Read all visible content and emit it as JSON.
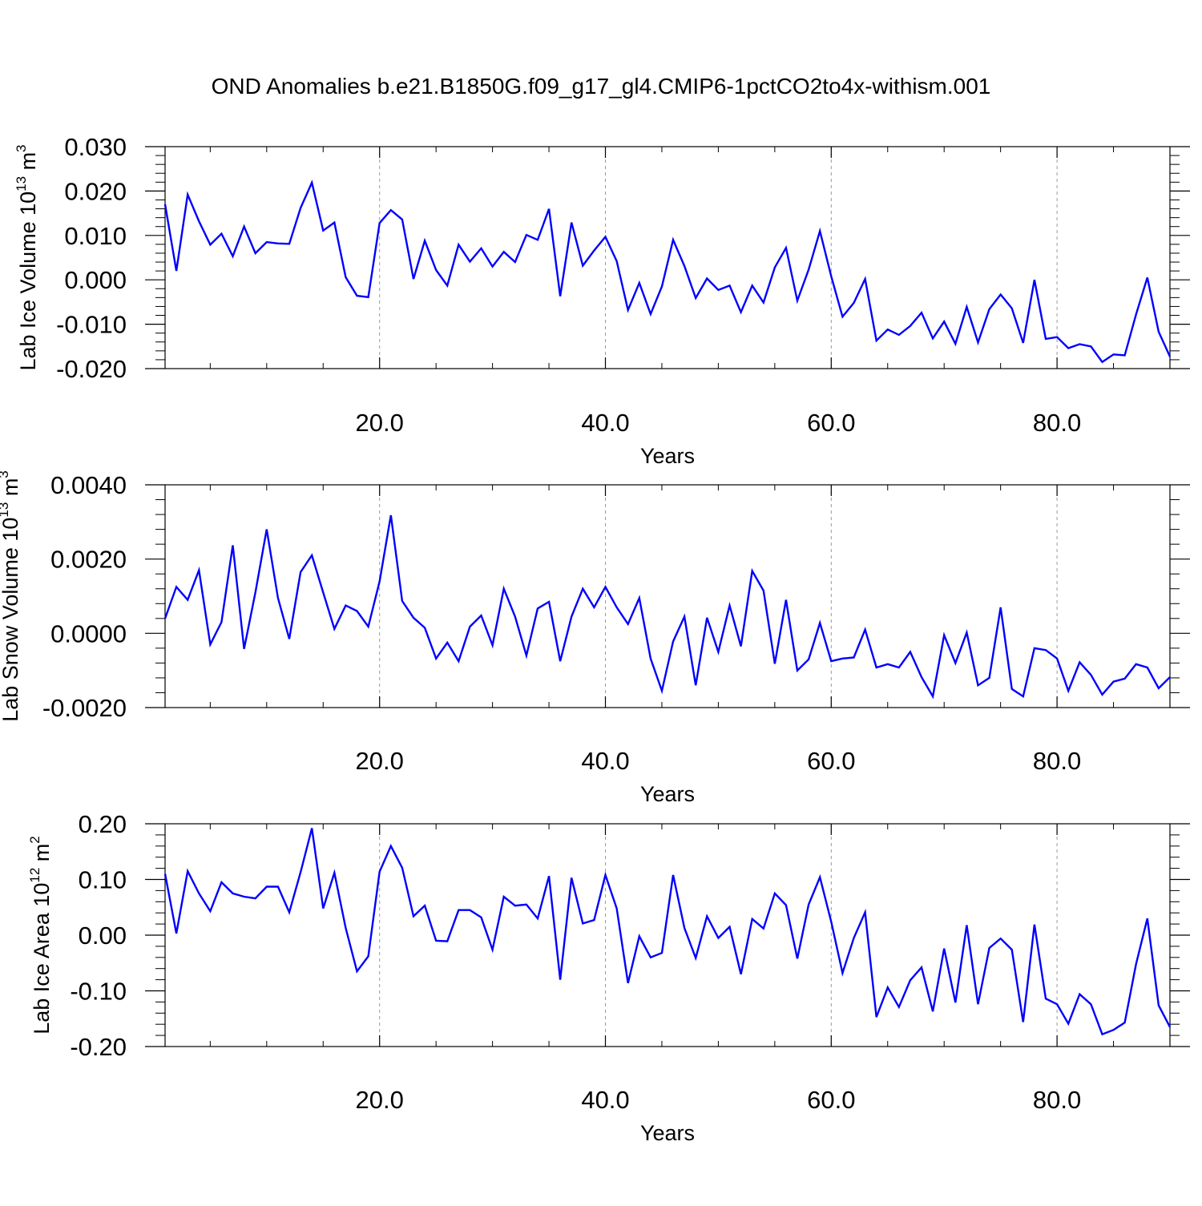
{
  "title": "OND Anomalies b.e21.B1850G.f09_g17_gl4.CMIP6-1pctCO2to4x-withism.001",
  "colors": {
    "line": "#0000ff",
    "axis": "#000000",
    "grid": "#999999",
    "background": "#ffffff"
  },
  "chart_data": [
    {
      "type": "line",
      "xlabel": "Years",
      "ylabel": {
        "text": "Lab Ice Volume 10",
        "exponent": "13",
        "unit": " m",
        "unit_exponent": "3"
      },
      "xlim": [
        1,
        90
      ],
      "ylim": [
        -0.02,
        0.03
      ],
      "xticks": [
        20,
        40,
        60,
        80
      ],
      "xtick_labels": [
        "20.0",
        "40.0",
        "60.0",
        "80.0"
      ],
      "yticks": [
        -0.02,
        -0.01,
        0.0,
        0.01,
        0.02,
        0.03
      ],
      "ytick_labels": [
        "-0.020",
        "-0.010",
        "0.000",
        "0.010",
        "0.020",
        "0.030"
      ],
      "grid": "vertical dashed at major x ticks",
      "series": [
        {
          "color": "#0000ff",
          "x": [
            1,
            2,
            3,
            4,
            5,
            6,
            7,
            8,
            9,
            10,
            11,
            12,
            13,
            14,
            15,
            16,
            17,
            18,
            19,
            20,
            21,
            22,
            23,
            24,
            25,
            26,
            27,
            28,
            29,
            30,
            31,
            32,
            33,
            34,
            35,
            36,
            37,
            38,
            39,
            40,
            41,
            42,
            43,
            44,
            45,
            46,
            47,
            48,
            49,
            50,
            51,
            52,
            53,
            54,
            55,
            56,
            57,
            58,
            59,
            60,
            61,
            62,
            63,
            64,
            65,
            66,
            67,
            68,
            69,
            70,
            71,
            72,
            73,
            74,
            75,
            76,
            77,
            78,
            79,
            80,
            81,
            82,
            83,
            84,
            85,
            86,
            87,
            88,
            89,
            90
          ],
          "values": [
            0.017,
            0.002,
            0.0192,
            0.0132,
            0.0079,
            0.0104,
            0.0053,
            0.012,
            0.006,
            0.0085,
            0.0082,
            0.0081,
            0.0162,
            0.0219,
            0.0111,
            0.0129,
            0.0006,
            -0.0036,
            -0.0039,
            0.0128,
            0.0157,
            0.0136,
            0.0002,
            0.0088,
            0.0022,
            -0.0013,
            0.0079,
            0.0041,
            0.0071,
            0.003,
            0.0063,
            0.004,
            0.0101,
            0.009,
            0.016,
            -0.0037,
            0.0129,
            0.0032,
            0.0066,
            0.0097,
            0.0042,
            -0.0068,
            -0.0007,
            -0.0077,
            -0.0015,
            0.009,
            0.0031,
            -0.0041,
            0.0003,
            -0.0023,
            -0.0013,
            -0.0073,
            -0.0013,
            -0.0051,
            0.0028,
            0.0072,
            -0.0047,
            0.0023,
            0.011,
            0.0008,
            -0.0083,
            -0.0052,
            0.0002,
            -0.0137,
            -0.0112,
            -0.0124,
            -0.0104,
            -0.0074,
            -0.0132,
            -0.0094,
            -0.0144,
            -0.0061,
            -0.0141,
            -0.0066,
            -0.0033,
            -0.0064,
            -0.0142,
            0.0,
            -0.0133,
            -0.0129,
            -0.0154,
            -0.0145,
            -0.015,
            -0.0185,
            -0.0168,
            -0.017,
            -0.0078,
            0.0005,
            -0.0117,
            -0.0173
          ]
        }
      ]
    },
    {
      "type": "line",
      "xlabel": "Years",
      "ylabel": {
        "text": "Lab Snow Volume 10",
        "exponent": "13",
        "unit": " m",
        "unit_exponent": "3"
      },
      "xlim": [
        1,
        90
      ],
      "ylim": [
        -0.002,
        0.004
      ],
      "xticks": [
        20,
        40,
        60,
        80
      ],
      "xtick_labels": [
        "20.0",
        "40.0",
        "60.0",
        "80.0"
      ],
      "yticks": [
        -0.002,
        0.0,
        0.002,
        0.004
      ],
      "ytick_labels": [
        "-0.0020",
        "0.0000",
        "0.0020",
        "0.0040"
      ],
      "grid": "vertical dashed at major x ticks",
      "series": [
        {
          "color": "#0000ff",
          "x": [
            1,
            2,
            3,
            4,
            5,
            6,
            7,
            8,
            9,
            10,
            11,
            12,
            13,
            14,
            15,
            16,
            17,
            18,
            19,
            20,
            21,
            22,
            23,
            24,
            25,
            26,
            27,
            28,
            29,
            30,
            31,
            32,
            33,
            34,
            35,
            36,
            37,
            38,
            39,
            40,
            41,
            42,
            43,
            44,
            45,
            46,
            47,
            48,
            49,
            50,
            51,
            52,
            53,
            54,
            55,
            56,
            57,
            58,
            59,
            60,
            61,
            62,
            63,
            64,
            65,
            66,
            67,
            68,
            69,
            70,
            71,
            72,
            73,
            74,
            75,
            76,
            77,
            78,
            79,
            80,
            81,
            82,
            83,
            84,
            85,
            86,
            87,
            88,
            89,
            90
          ],
          "values": [
            0.0004,
            0.00125,
            0.0009,
            0.0017,
            -0.0003,
            0.0003,
            0.00237,
            -0.00042,
            0.0011,
            0.0028,
            0.00095,
            -0.00015,
            0.00165,
            0.0021,
            0.0011,
            0.00012,
            0.00075,
            0.0006,
            0.00018,
            0.0014,
            0.00318,
            0.00087,
            0.00042,
            0.00015,
            -0.00068,
            -0.00025,
            -0.00075,
            0.00018,
            0.00048,
            -0.00032,
            0.0012,
            0.00045,
            -0.0006,
            0.00067,
            0.00085,
            -0.00075,
            0.00045,
            0.0012,
            0.0007,
            0.00125,
            0.0007,
            0.00025,
            0.00095,
            -0.00068,
            -0.00155,
            -0.00022,
            0.00045,
            -0.0014,
            0.00042,
            -0.0005,
            0.00075,
            -0.00035,
            0.00168,
            0.00115,
            -0.00082,
            0.0009,
            -0.001,
            -0.0007,
            0.00028,
            -0.00075,
            -0.00068,
            -0.00065,
            0.0001,
            -0.00092,
            -0.00083,
            -0.00092,
            -0.0005,
            -0.00118,
            -0.0017,
            -5e-05,
            -0.0008,
            2e-05,
            -0.0014,
            -0.0012,
            0.0007,
            -0.0015,
            -0.0017,
            -0.0004,
            -0.00045,
            -0.00068,
            -0.00155,
            -0.00078,
            -0.00112,
            -0.00165,
            -0.0013,
            -0.00122,
            -0.00083,
            -0.00092,
            -0.00148,
            -0.00118
          ]
        }
      ]
    },
    {
      "type": "line",
      "xlabel": "Years",
      "ylabel": {
        "text": "Lab Ice Area 10",
        "exponent": "12",
        "unit": " m",
        "unit_exponent": "2"
      },
      "xlim": [
        1,
        90
      ],
      "ylim": [
        -0.2,
        0.2
      ],
      "xticks": [
        20,
        40,
        60,
        80
      ],
      "xtick_labels": [
        "20.0",
        "40.0",
        "60.0",
        "80.0"
      ],
      "yticks": [
        -0.2,
        -0.1,
        0.0,
        0.1,
        0.2
      ],
      "ytick_labels": [
        "-0.20",
        "-0.10",
        "0.00",
        "0.10",
        "0.20"
      ],
      "grid": "vertical dashed at major x ticks",
      "series": [
        {
          "color": "#0000ff",
          "x": [
            1,
            2,
            3,
            4,
            5,
            6,
            7,
            8,
            9,
            10,
            11,
            12,
            13,
            14,
            15,
            16,
            17,
            18,
            19,
            20,
            21,
            22,
            23,
            24,
            25,
            26,
            27,
            28,
            29,
            30,
            31,
            32,
            33,
            34,
            35,
            36,
            37,
            38,
            39,
            40,
            41,
            42,
            43,
            44,
            45,
            46,
            47,
            48,
            49,
            50,
            51,
            52,
            53,
            54,
            55,
            56,
            57,
            58,
            59,
            60,
            61,
            62,
            63,
            64,
            65,
            66,
            67,
            68,
            69,
            70,
            71,
            72,
            73,
            74,
            75,
            76,
            77,
            78,
            79,
            80,
            81,
            82,
            83,
            84,
            85,
            86,
            87,
            88,
            89,
            90
          ],
          "values": [
            0.11,
            0.003,
            0.115,
            0.075,
            0.043,
            0.095,
            0.075,
            0.069,
            0.066,
            0.087,
            0.087,
            0.041,
            0.113,
            0.192,
            0.048,
            0.112,
            0.013,
            -0.065,
            -0.038,
            0.114,
            0.16,
            0.121,
            0.034,
            0.053,
            -0.01,
            -0.011,
            0.045,
            0.045,
            0.032,
            -0.026,
            0.069,
            0.053,
            0.055,
            0.03,
            0.106,
            -0.08,
            0.103,
            0.021,
            0.027,
            0.108,
            0.048,
            -0.086,
            -0.002,
            -0.04,
            -0.032,
            0.108,
            0.013,
            -0.041,
            0.034,
            -0.005,
            0.015,
            -0.07,
            0.029,
            0.012,
            0.075,
            0.054,
            -0.042,
            0.055,
            0.104,
            0.024,
            -0.068,
            -0.005,
            0.041,
            -0.147,
            -0.094,
            -0.129,
            -0.081,
            -0.058,
            -0.137,
            -0.024,
            -0.121,
            0.018,
            -0.124,
            -0.023,
            -0.006,
            -0.026,
            -0.156,
            0.019,
            -0.114,
            -0.124,
            -0.159,
            -0.106,
            -0.124,
            -0.178,
            -0.17,
            -0.157,
            -0.052,
            0.03,
            -0.126,
            -0.165
          ]
        }
      ]
    }
  ]
}
